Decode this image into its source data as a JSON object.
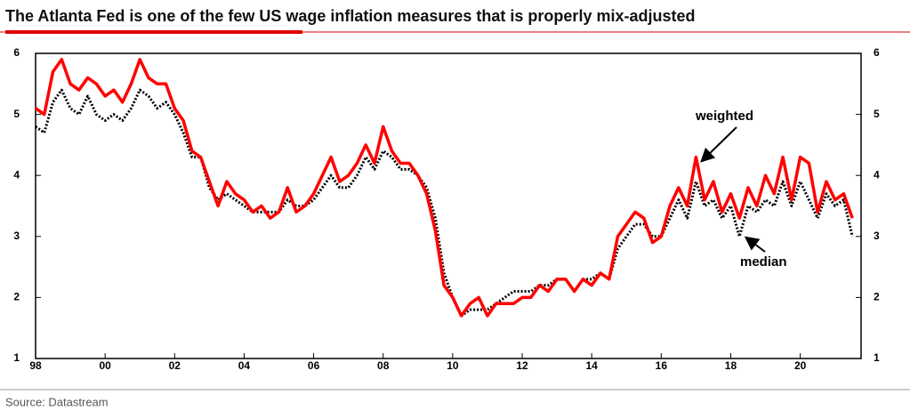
{
  "chart_data": {
    "type": "line",
    "title": "The Atlanta Fed is one of the few US wage inflation measures that is properly mix-adjusted",
    "source": "Source: Datastream",
    "annotations": [
      "weighted",
      "median"
    ],
    "x": [
      1998,
      1998.25,
      1998.5,
      1998.75,
      1999,
      1999.25,
      1999.5,
      1999.75,
      2000,
      2000.25,
      2000.5,
      2000.75,
      2001,
      2001.25,
      2001.5,
      2001.75,
      2002,
      2002.25,
      2002.5,
      2002.75,
      2003,
      2003.25,
      2003.5,
      2003.75,
      2004,
      2004.25,
      2004.5,
      2004.75,
      2005,
      2005.25,
      2005.5,
      2005.75,
      2006,
      2006.25,
      2006.5,
      2006.75,
      2007,
      2007.25,
      2007.5,
      2007.75,
      2008,
      2008.25,
      2008.5,
      2008.75,
      2009,
      2009.25,
      2009.5,
      2009.75,
      2010,
      2010.25,
      2010.5,
      2010.75,
      2011,
      2011.25,
      2011.5,
      2011.75,
      2012,
      2012.25,
      2012.5,
      2012.75,
      2013,
      2013.25,
      2013.5,
      2013.75,
      2014,
      2014.25,
      2014.5,
      2014.75,
      2015,
      2015.25,
      2015.5,
      2015.75,
      2016,
      2016.25,
      2016.5,
      2016.75,
      2017,
      2017.25,
      2017.5,
      2017.75,
      2018,
      2018.25,
      2018.5,
      2018.75,
      2019,
      2019.25,
      2019.5,
      2019.75,
      2020,
      2020.25,
      2020.5,
      2020.75,
      2021,
      2021.25,
      2021.5
    ],
    "series": [
      {
        "name": "weighted",
        "color": "#ff0000",
        "dash": false,
        "values": [
          5.1,
          5.0,
          5.7,
          5.9,
          5.5,
          5.4,
          5.6,
          5.5,
          5.3,
          5.4,
          5.2,
          5.5,
          5.9,
          5.6,
          5.5,
          5.5,
          5.1,
          4.9,
          4.4,
          4.3,
          3.9,
          3.5,
          3.9,
          3.7,
          3.6,
          3.4,
          3.5,
          3.3,
          3.4,
          3.8,
          3.4,
          3.5,
          3.7,
          4.0,
          4.3,
          3.9,
          4.0,
          4.2,
          4.5,
          4.2,
          4.8,
          4.4,
          4.2,
          4.2,
          4.0,
          3.7,
          3.1,
          2.2,
          2.0,
          1.7,
          1.9,
          2.0,
          1.7,
          1.9,
          1.9,
          1.9,
          2.0,
          2.0,
          2.2,
          2.1,
          2.3,
          2.3,
          2.1,
          2.3,
          2.2,
          2.4,
          2.3,
          3.0,
          3.2,
          3.4,
          3.3,
          2.9,
          3.0,
          3.5,
          3.8,
          3.5,
          4.3,
          3.6,
          3.9,
          3.4,
          3.7,
          3.3,
          3.8,
          3.5,
          4.0,
          3.7,
          4.3,
          3.6,
          4.3,
          4.2,
          3.4,
          3.9,
          3.6,
          3.7,
          3.3
        ]
      },
      {
        "name": "median",
        "color": "#000000",
        "dash": true,
        "values": [
          4.8,
          4.7,
          5.2,
          5.4,
          5.1,
          5.0,
          5.3,
          5.0,
          4.9,
          5.0,
          4.9,
          5.1,
          5.4,
          5.3,
          5.1,
          5.2,
          5.0,
          4.7,
          4.3,
          4.3,
          3.8,
          3.6,
          3.7,
          3.6,
          3.5,
          3.4,
          3.4,
          3.4,
          3.4,
          3.6,
          3.5,
          3.5,
          3.6,
          3.8,
          4.0,
          3.8,
          3.8,
          4.0,
          4.3,
          4.1,
          4.4,
          4.3,
          4.1,
          4.1,
          4.0,
          3.8,
          3.3,
          2.4,
          2.0,
          1.7,
          1.8,
          1.8,
          1.8,
          1.9,
          2.0,
          2.1,
          2.1,
          2.1,
          2.2,
          2.2,
          2.3,
          2.3,
          2.1,
          2.3,
          2.3,
          2.4,
          2.3,
          2.8,
          3.0,
          3.2,
          3.2,
          3.0,
          3.0,
          3.3,
          3.6,
          3.3,
          3.9,
          3.5,
          3.6,
          3.3,
          3.5,
          3.0,
          3.5,
          3.4,
          3.6,
          3.5,
          3.9,
          3.5,
          3.9,
          3.6,
          3.3,
          3.7,
          3.5,
          3.6,
          3.0
        ]
      }
    ],
    "xlim": [
      1998,
      2021.75
    ],
    "xticks": [
      {
        "value": 1998,
        "label": "98"
      },
      {
        "value": 2000,
        "label": "00"
      },
      {
        "value": 2002,
        "label": "02"
      },
      {
        "value": 2004,
        "label": "04"
      },
      {
        "value": 2006,
        "label": "06"
      },
      {
        "value": 2008,
        "label": "08"
      },
      {
        "value": 2010,
        "label": "10"
      },
      {
        "value": 2012,
        "label": "12"
      },
      {
        "value": 2014,
        "label": "14"
      },
      {
        "value": 2016,
        "label": "16"
      },
      {
        "value": 2018,
        "label": "18"
      },
      {
        "value": 2020,
        "label": "20"
      }
    ],
    "ylim": [
      1,
      6
    ],
    "yticks": [
      1,
      2,
      3,
      4,
      5,
      6
    ],
    "y2lim": [
      1,
      6
    ],
    "y2ticks": [
      1,
      2,
      3,
      4,
      5,
      6
    ]
  }
}
